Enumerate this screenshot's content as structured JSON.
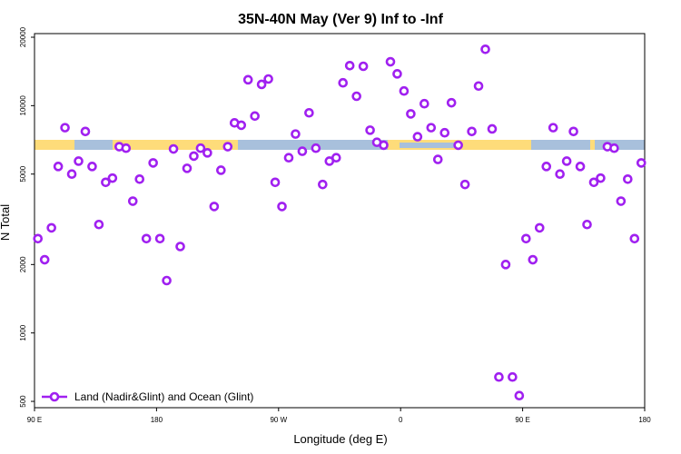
{
  "chart_data": {
    "type": "scatter",
    "title": "35N-40N May (Ver 9)   Inf to -Inf",
    "x_label": "Longitude (deg E)",
    "y_label": "N Total",
    "log_y": true,
    "legend": "bottom-left",
    "xlim": [
      90,
      540
    ],
    "ylim": [
      469,
      20750
    ],
    "xticks": [
      {
        "value": 90,
        "label": "90 E"
      },
      180,
      {
        "value": 270,
        "label": "90 W"
      },
      {
        "value": 360,
        "label": "0"
      },
      {
        "value": 450,
        "label": "90 E"
      },
      {
        "value": 540,
        "label": "180"
      }
    ],
    "yticks": [
      500,
      1000,
      2000,
      5000,
      10000,
      20000
    ],
    "series": [
      {
        "name": "Land (Nadir&Glint) and Ocean (Glint)",
        "color": "#a020f0",
        "x": [
          92.5,
          97.5,
          102.5,
          107.5,
          112.5,
          117.5,
          122.5,
          127.5,
          132.5,
          137.5,
          142.5,
          147.5,
          152.5,
          157.5,
          162.5,
          167.5,
          172.5,
          177.5,
          182.5,
          187.5,
          192.5,
          197.5,
          202.5,
          207.5,
          212.5,
          217.5,
          222.5,
          227.5,
          232.5,
          237.5,
          242.5,
          247.5,
          252.5,
          257.5,
          262.5,
          267.5,
          272.5,
          277.5,
          282.5,
          287.5,
          292.5,
          297.5,
          302.5,
          307.5,
          312.5,
          317.5,
          322.5,
          327.5,
          332.5,
          337.5,
          342.5,
          347.5,
          352.5,
          357.5,
          362.5,
          367.5,
          372.5,
          377.5,
          382.5,
          387.5,
          392.5,
          397.5,
          402.5,
          407.5,
          412.5,
          417.5,
          422.5,
          427.5,
          432.5,
          437.5,
          442.5,
          447.5,
          452.5,
          457.5,
          462.5,
          467.5,
          472.5,
          477.5,
          482.5,
          487.5,
          492.5,
          497.5,
          502.5,
          507.5,
          512.5,
          517.5,
          522.5,
          527.5,
          532.5,
          537.5
        ],
        "values": [
          2600,
          2100,
          2900,
          5400,
          8000,
          5000,
          5700,
          7700,
          5400,
          3000,
          4600,
          4800,
          6600,
          6500,
          3800,
          4750,
          2600,
          5600,
          2600,
          1700,
          6450,
          2400,
          5300,
          6000,
          6500,
          6200,
          3600,
          5200,
          6600,
          8400,
          8200,
          13000,
          9000,
          12400,
          13100,
          4600,
          3600,
          5900,
          7500,
          6300,
          9300,
          6500,
          4500,
          5700,
          5900,
          12600,
          15000,
          11000,
          14900,
          7800,
          6900,
          6700,
          15600,
          13800,
          11600,
          9200,
          7300,
          10200,
          8000,
          5800,
          7600,
          10300,
          6700,
          4500,
          7700,
          12200,
          17700,
          7900,
          640,
          2000,
          640,
          530,
          2600,
          2100,
          2900,
          5400,
          8000,
          5000,
          5700,
          7700,
          5400,
          3000,
          4600,
          4800,
          6600,
          6500,
          3800,
          4750,
          2600,
          5600
        ]
      }
    ]
  }
}
